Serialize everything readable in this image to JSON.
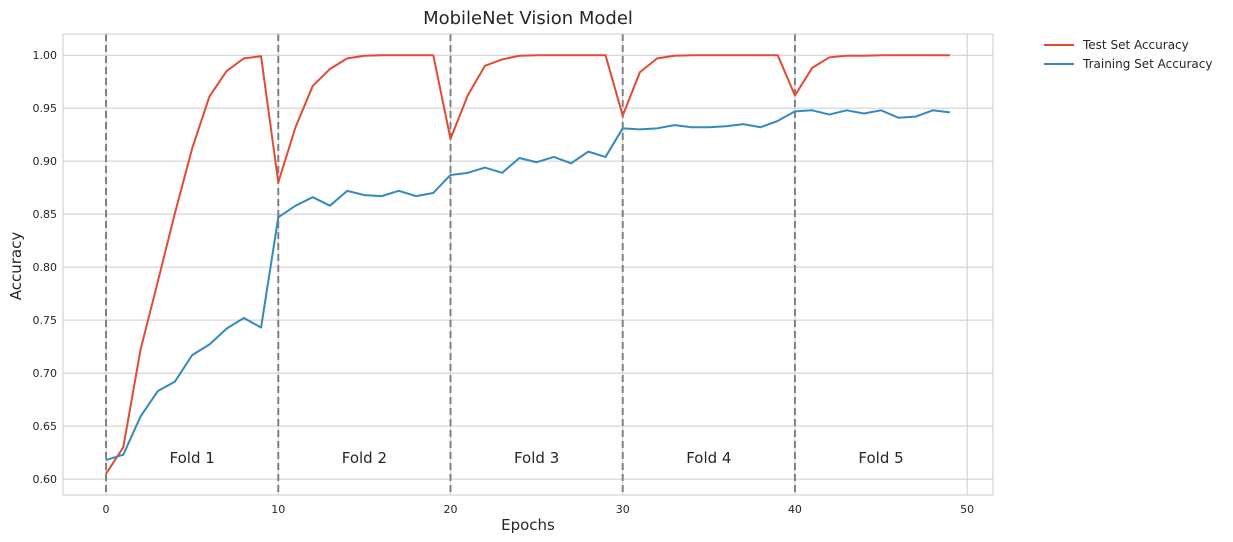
{
  "chart_data": {
    "type": "line",
    "title": "MobileNet Vision Model",
    "xlabel": "Epochs",
    "ylabel": "Accuracy",
    "xlim": [
      -2.5,
      51.5
    ],
    "ylim": [
      0.585,
      1.02
    ],
    "xticks": [
      0,
      10,
      20,
      30,
      40,
      50
    ],
    "yticks": [
      0.6,
      0.65,
      0.7,
      0.75,
      0.8,
      0.85,
      0.9,
      0.95,
      1.0
    ],
    "grid": true,
    "legend_position": "outside top-right",
    "x": [
      0,
      1,
      2,
      3,
      4,
      5,
      6,
      7,
      8,
      9,
      10,
      11,
      12,
      13,
      14,
      15,
      16,
      17,
      18,
      19,
      20,
      21,
      22,
      23,
      24,
      25,
      26,
      27,
      28,
      29,
      30,
      31,
      32,
      33,
      34,
      35,
      36,
      37,
      38,
      39,
      40,
      41,
      42,
      43,
      44,
      45,
      46,
      47,
      48,
      49
    ],
    "series": [
      {
        "name": "Test Set Accuracy",
        "color": "#e24a33",
        "values": [
          0.605,
          0.63,
          0.722,
          0.786,
          0.851,
          0.912,
          0.961,
          0.985,
          0.997,
          0.999,
          0.88,
          0.932,
          0.971,
          0.987,
          0.997,
          0.9995,
          1.0,
          1.0,
          1.0,
          1.0,
          0.921,
          0.962,
          0.99,
          0.996,
          0.9995,
          1.0,
          1.0,
          1.0,
          1.0,
          1.0,
          0.943,
          0.984,
          0.997,
          0.9995,
          1.0,
          1.0,
          1.0,
          1.0,
          1.0,
          1.0,
          0.962,
          0.988,
          0.998,
          0.9995,
          0.9995,
          1.0,
          1.0,
          1.0,
          1.0,
          1.0
        ]
      },
      {
        "name": "Training Set Accuracy",
        "color": "#348abd",
        "values": [
          0.618,
          0.623,
          0.659,
          0.683,
          0.692,
          0.717,
          0.727,
          0.742,
          0.752,
          0.743,
          0.847,
          0.858,
          0.866,
          0.858,
          0.872,
          0.868,
          0.867,
          0.872,
          0.867,
          0.87,
          0.887,
          0.889,
          0.894,
          0.889,
          0.903,
          0.899,
          0.904,
          0.898,
          0.909,
          0.904,
          0.931,
          0.93,
          0.931,
          0.934,
          0.932,
          0.932,
          0.933,
          0.935,
          0.932,
          0.938,
          0.947,
          0.948,
          0.944,
          0.948,
          0.945,
          0.948,
          0.941,
          0.942,
          0.948,
          0.946
        ]
      }
    ],
    "fold_boundaries": [
      0,
      10,
      20,
      30,
      40
    ],
    "fold_annotations": [
      {
        "label": "Fold 1",
        "x": 5,
        "y": 0.62
      },
      {
        "label": "Fold 2",
        "x": 15,
        "y": 0.62
      },
      {
        "label": "Fold 3",
        "x": 25,
        "y": 0.62
      },
      {
        "label": "Fold 4",
        "x": 35,
        "y": 0.62
      },
      {
        "label": "Fold 5",
        "x": 45,
        "y": 0.62
      }
    ],
    "boundary_color": "#808080"
  }
}
